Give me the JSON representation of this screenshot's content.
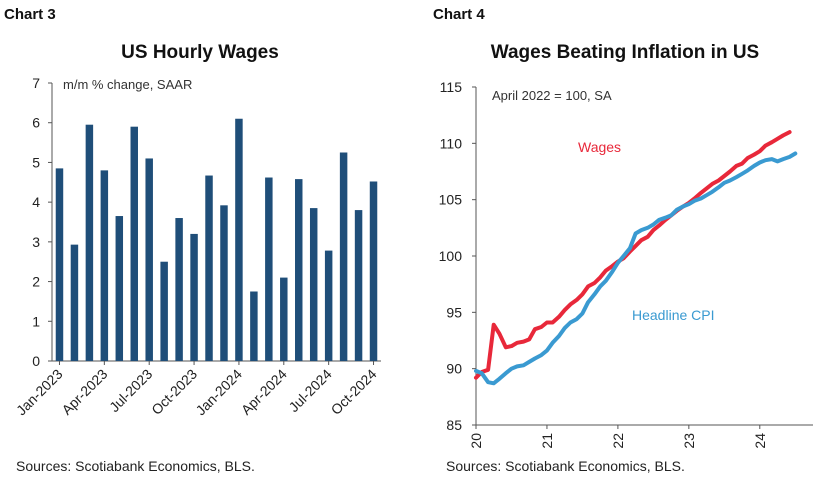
{
  "left": {
    "label": "Chart 3",
    "source": "Sources: Scotiabank Economics, BLS.",
    "chart_data": {
      "type": "bar",
      "title": "US Hourly Wages",
      "annotation": "m/m % change, SAAR",
      "xlabel": "",
      "ylabel": "",
      "ylim": [
        0,
        7
      ],
      "yticks": [
        0,
        1,
        2,
        3,
        4,
        5,
        6,
        7
      ],
      "categories": [
        "Jan-2023",
        "Feb-2023",
        "Mar-2023",
        "Apr-2023",
        "May-2023",
        "Jun-2023",
        "Jul-2023",
        "Aug-2023",
        "Sep-2023",
        "Oct-2023",
        "Nov-2023",
        "Dec-2023",
        "Jan-2024",
        "Feb-2024",
        "Mar-2024",
        "Apr-2024",
        "May-2024",
        "Jun-2024",
        "Jul-2024",
        "Aug-2024",
        "Sep-2024",
        "Oct-2024"
      ],
      "tick_labels": [
        "Jan-2023",
        "Apr-2023",
        "Jul-2023",
        "Oct-2023",
        "Jan-2024",
        "Apr-2024",
        "Jul-2024",
        "Oct-2024"
      ],
      "values": [
        4.85,
        2.93,
        5.95,
        4.8,
        3.65,
        5.9,
        5.1,
        2.5,
        3.6,
        3.2,
        4.67,
        3.92,
        6.1,
        1.75,
        4.62,
        2.1,
        4.58,
        3.85,
        2.78,
        5.25,
        3.8,
        4.52
      ],
      "color": "#1f4e79"
    }
  },
  "right": {
    "label": "Chart 4",
    "source": "Sources: Scotiabank Economics, BLS.",
    "chart_data": {
      "type": "line",
      "title": "Wages Beating Inflation in US",
      "annotation": "April 2022 = 100, SA",
      "ylim": [
        85,
        115
      ],
      "yticks": [
        85,
        90,
        95,
        100,
        105,
        110,
        115
      ],
      "xlim": [
        20,
        24.75
      ],
      "xticks": [
        20,
        21,
        22,
        23,
        24
      ],
      "xtick_labels": [
        "20",
        "21",
        "22",
        "23",
        "24"
      ],
      "series": [
        {
          "name": "Wages",
          "color": "#e8283a",
          "points": [
            [
              20.0,
              89.2
            ],
            [
              20.08,
              89.7
            ],
            [
              20.17,
              89.9
            ],
            [
              20.25,
              93.9
            ],
            [
              20.33,
              93.1
            ],
            [
              20.42,
              91.9
            ],
            [
              20.5,
              92.0
            ],
            [
              20.58,
              92.3
            ],
            [
              20.67,
              92.4
            ],
            [
              20.75,
              92.6
            ],
            [
              20.83,
              93.5
            ],
            [
              20.92,
              93.7
            ],
            [
              21.0,
              94.1
            ],
            [
              21.08,
              94.1
            ],
            [
              21.17,
              94.6
            ],
            [
              21.25,
              95.2
            ],
            [
              21.33,
              95.7
            ],
            [
              21.42,
              96.1
            ],
            [
              21.5,
              96.6
            ],
            [
              21.58,
              97.3
            ],
            [
              21.67,
              97.6
            ],
            [
              21.75,
              98.1
            ],
            [
              21.83,
              98.7
            ],
            [
              21.92,
              99.1
            ],
            [
              22.0,
              99.5
            ],
            [
              22.08,
              99.8
            ],
            [
              22.17,
              100.4
            ],
            [
              22.25,
              100.9
            ],
            [
              22.33,
              101.4
            ],
            [
              22.42,
              101.7
            ],
            [
              22.5,
              102.3
            ],
            [
              22.58,
              102.7
            ],
            [
              22.67,
              103.2
            ],
            [
              22.75,
              103.6
            ],
            [
              22.83,
              104.0
            ],
            [
              22.92,
              104.4
            ],
            [
              23.0,
              104.7
            ],
            [
              23.08,
              105.1
            ],
            [
              23.17,
              105.6
            ],
            [
              23.25,
              106.0
            ],
            [
              23.33,
              106.4
            ],
            [
              23.42,
              106.7
            ],
            [
              23.5,
              107.1
            ],
            [
              23.58,
              107.5
            ],
            [
              23.67,
              108.0
            ],
            [
              23.75,
              108.2
            ],
            [
              23.83,
              108.7
            ],
            [
              23.92,
              109.0
            ],
            [
              24.0,
              109.3
            ],
            [
              24.08,
              109.8
            ],
            [
              24.17,
              110.1
            ],
            [
              24.25,
              110.4
            ],
            [
              24.33,
              110.7
            ],
            [
              24.42,
              111.0
            ]
          ]
        },
        {
          "name": "Headline CPI",
          "color": "#3a9ad1",
          "points": [
            [
              20.0,
              89.8
            ],
            [
              20.08,
              89.6
            ],
            [
              20.17,
              88.8
            ],
            [
              20.25,
              88.7
            ],
            [
              20.33,
              89.1
            ],
            [
              20.42,
              89.6
            ],
            [
              20.5,
              90.0
            ],
            [
              20.58,
              90.2
            ],
            [
              20.67,
              90.3
            ],
            [
              20.75,
              90.6
            ],
            [
              20.83,
              90.9
            ],
            [
              20.92,
              91.2
            ],
            [
              21.0,
              91.6
            ],
            [
              21.08,
              92.3
            ],
            [
              21.17,
              92.9
            ],
            [
              21.25,
              93.6
            ],
            [
              21.33,
              94.1
            ],
            [
              21.42,
              94.4
            ],
            [
              21.5,
              94.9
            ],
            [
              21.58,
              95.9
            ],
            [
              21.67,
              96.6
            ],
            [
              21.75,
              97.3
            ],
            [
              21.83,
              97.8
            ],
            [
              21.92,
              98.6
            ],
            [
              22.0,
              99.4
            ],
            [
              22.08,
              100.0
            ],
            [
              22.17,
              100.7
            ],
            [
              22.25,
              102.0
            ],
            [
              22.33,
              102.3
            ],
            [
              22.42,
              102.5
            ],
            [
              22.5,
              102.8
            ],
            [
              22.58,
              103.2
            ],
            [
              22.67,
              103.4
            ],
            [
              22.75,
              103.6
            ],
            [
              22.83,
              104.1
            ],
            [
              22.92,
              104.4
            ],
            [
              23.0,
              104.6
            ],
            [
              23.08,
              104.9
            ],
            [
              23.17,
              105.1
            ],
            [
              23.25,
              105.4
            ],
            [
              23.33,
              105.7
            ],
            [
              23.42,
              106.1
            ],
            [
              23.5,
              106.5
            ],
            [
              23.58,
              106.7
            ],
            [
              23.67,
              107.0
            ],
            [
              23.75,
              107.3
            ],
            [
              23.83,
              107.6
            ],
            [
              23.92,
              108.0
            ],
            [
              24.0,
              108.3
            ],
            [
              24.08,
              108.5
            ],
            [
              24.17,
              108.6
            ],
            [
              24.25,
              108.4
            ],
            [
              24.33,
              108.6
            ],
            [
              24.42,
              108.8
            ],
            [
              24.5,
              109.1
            ]
          ]
        }
      ],
      "series_labels": {
        "wages": "Wages",
        "cpi": "Headline CPI"
      }
    }
  }
}
